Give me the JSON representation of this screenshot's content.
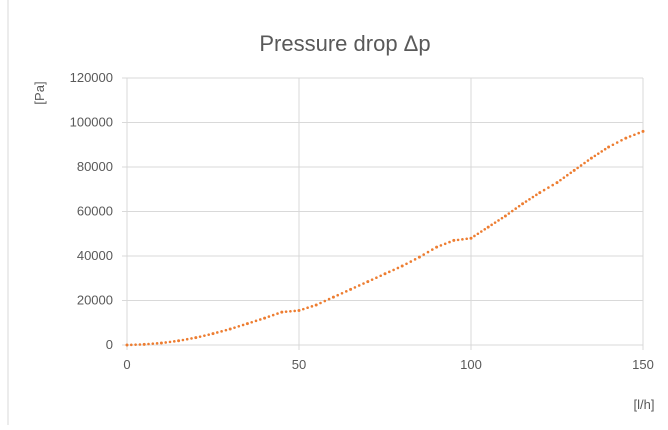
{
  "chart_data": {
    "type": "scatter",
    "title": "Pressure drop Δp",
    "xlabel": "[l/h]",
    "ylabel": "[Pa]",
    "xlim": [
      0,
      150
    ],
    "ylim": [
      0,
      120000
    ],
    "xticks": [
      "0",
      "50",
      "100",
      "150"
    ],
    "yticks": [
      "0",
      "20000",
      "40000",
      "60000",
      "80000",
      "100000",
      "120000"
    ],
    "grid": true,
    "legend": "none",
    "series": [
      {
        "color": "#ed7d31",
        "marker": "dot",
        "x": [
          0,
          5,
          10,
          15,
          20,
          25,
          30,
          35,
          40,
          45,
          50,
          55,
          60,
          65,
          70,
          75,
          80,
          85,
          90,
          95,
          100,
          105,
          110,
          115,
          120,
          125,
          130,
          135,
          140,
          145,
          150
        ],
        "y": [
          0,
          300,
          900,
          1900,
          3300,
          5100,
          7200,
          9600,
          12100,
          14800,
          15500,
          18000,
          21500,
          25000,
          28500,
          32000,
          35500,
          39500,
          44000,
          47000,
          48000,
          53000,
          58000,
          63500,
          68500,
          73000,
          78500,
          84000,
          89000,
          93000,
          96000
        ]
      }
    ]
  },
  "colors": {
    "axis": "#d9d9d9",
    "grid": "#d9d9d9",
    "text": "#595959",
    "title": "#595959",
    "series": "#ed7d31"
  }
}
